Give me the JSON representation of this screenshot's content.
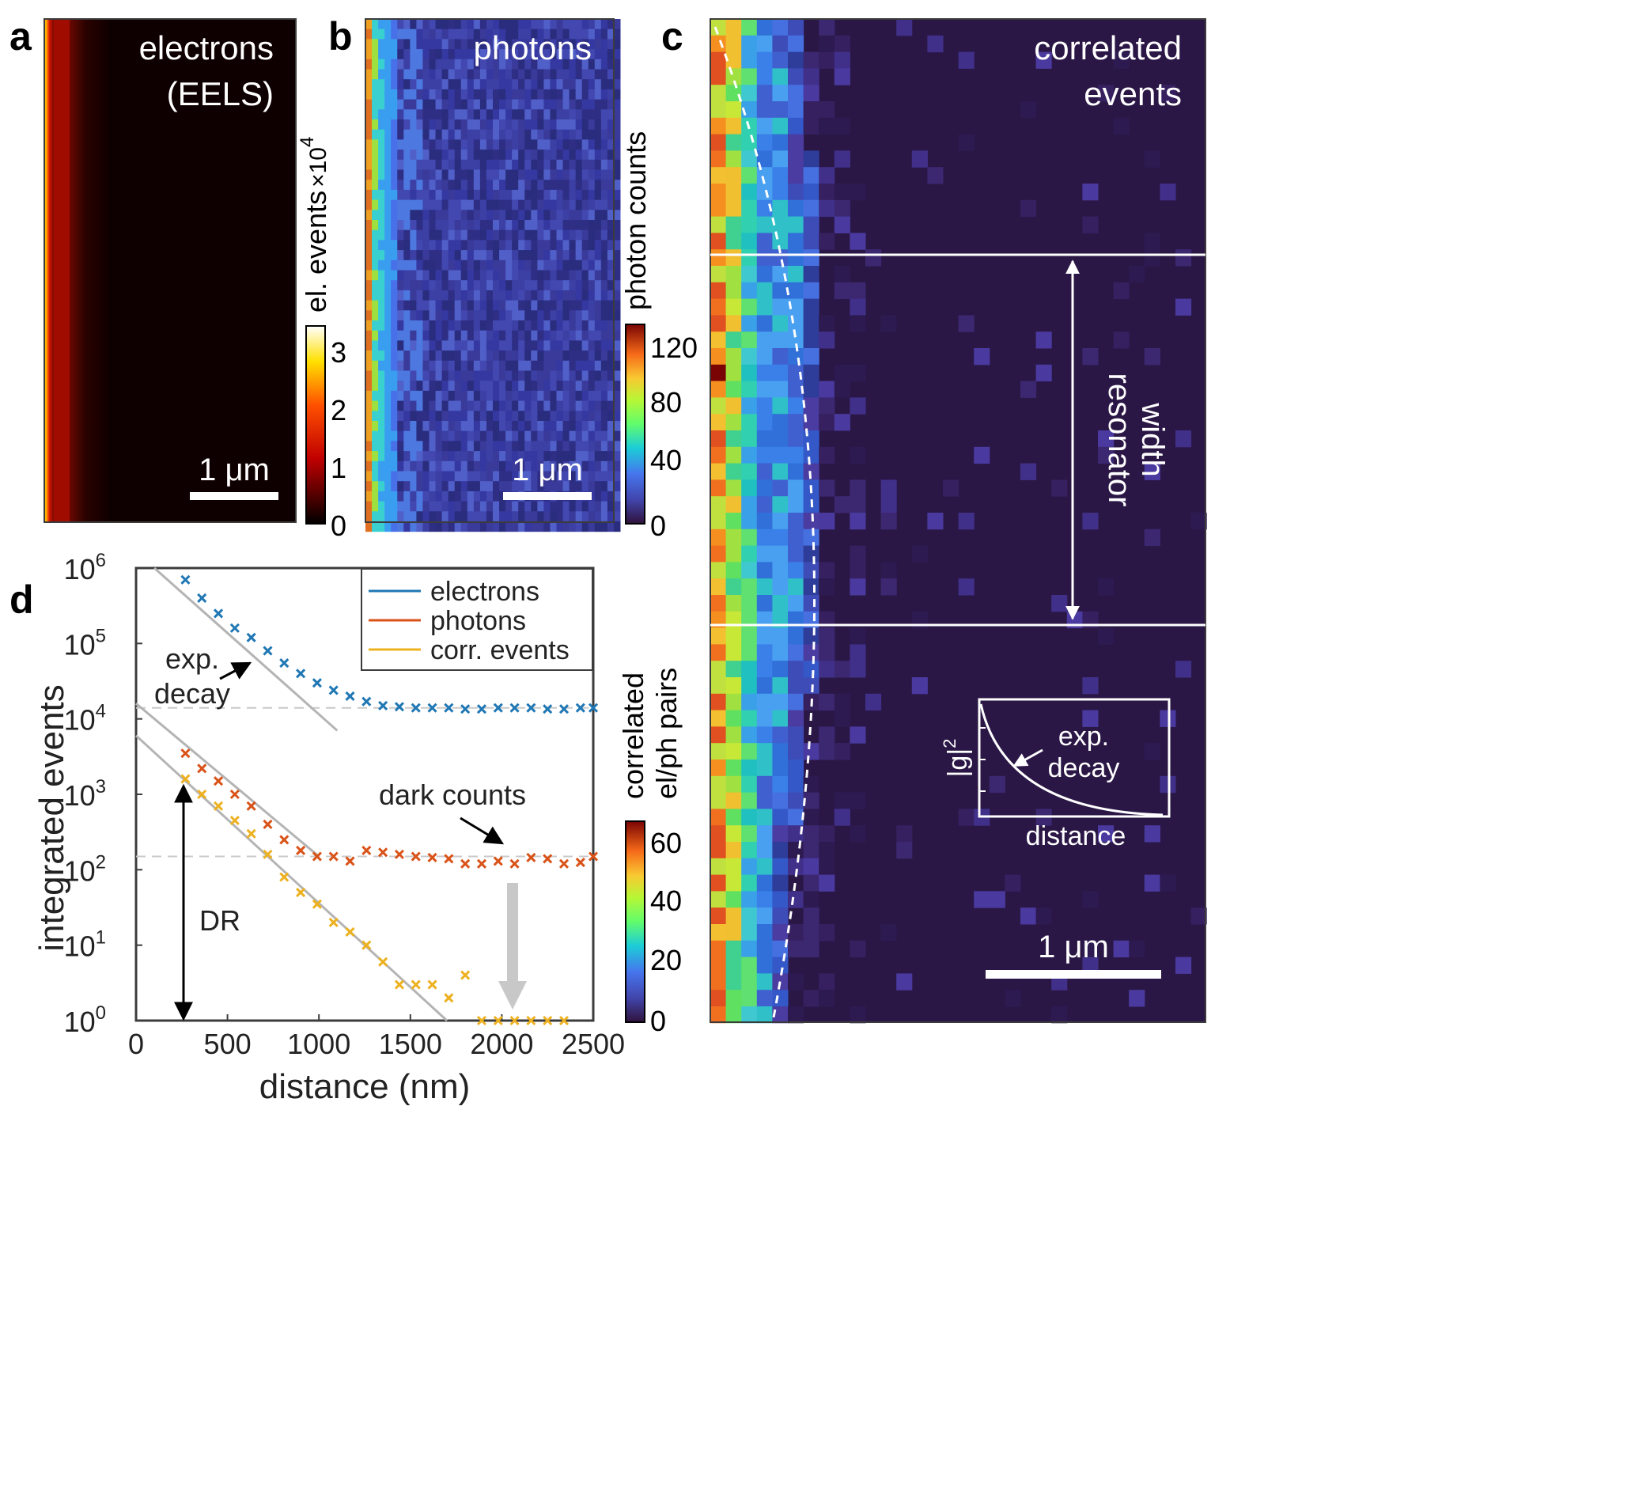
{
  "panels": {
    "a": {
      "letter": "a",
      "label_line1": "electrons",
      "label_line2": "(EELS)",
      "scale_bar": "1 μm",
      "colorbar": {
        "label": "el. events",
        "mult": "×10",
        "exp": "4",
        "ticks": [
          "0",
          "1",
          "2",
          "3"
        ]
      }
    },
    "b": {
      "letter": "b",
      "label": "photons",
      "scale_bar": "1 μm",
      "colorbar": {
        "label": "photon counts",
        "ticks": [
          "0",
          "40",
          "80",
          "120"
        ]
      }
    },
    "c": {
      "letter": "c",
      "label_line1": "correlated",
      "label_line2": "events",
      "annotation_line1": "resonator",
      "annotation_line2": "width",
      "scale_bar": "1 μm",
      "inset": {
        "ylabel_base": "|g|",
        "ylabel_exp": "2",
        "xlabel": "distance",
        "annot_line1": "exp.",
        "annot_line2": "decay"
      },
      "colorbar": {
        "label_line1": "correlated",
        "label_line2": "el/ph pairs",
        "ticks": [
          "0",
          "20",
          "40",
          "60"
        ]
      }
    },
    "d": {
      "letter": "d"
    }
  },
  "chart_data": {
    "type": "scatter",
    "title": "",
    "xlabel": "distance (nm)",
    "ylabel": "integrated events",
    "xscale": "linear",
    "yscale": "log",
    "xlim": [
      0,
      2500
    ],
    "ylim": [
      1,
      1000000
    ],
    "xticks": [
      "0",
      "500",
      "1000",
      "1500",
      "2000",
      "2500"
    ],
    "yticks": [
      {
        "base": "10",
        "exp": "0"
      },
      {
        "base": "10",
        "exp": "1"
      },
      {
        "base": "10",
        "exp": "2"
      },
      {
        "base": "10",
        "exp": "3"
      },
      {
        "base": "10",
        "exp": "4"
      },
      {
        "base": "10",
        "exp": "5"
      },
      {
        "base": "10",
        "exp": "6"
      }
    ],
    "legend_position": "top-right",
    "x": [
      270,
      360,
      450,
      540,
      630,
      720,
      810,
      900,
      990,
      1080,
      1170,
      1260,
      1350,
      1440,
      1530,
      1620,
      1710,
      1800,
      1890,
      1980,
      2070,
      2160,
      2250,
      2340,
      2430,
      2500
    ],
    "series": [
      {
        "name": "electrons",
        "color": "#1f77b4",
        "values": [
          700000,
          400000,
          250000,
          160000,
          120000,
          80000,
          55000,
          40000,
          30000,
          24000,
          20000,
          17000,
          15000,
          14500,
          14000,
          14000,
          14000,
          13500,
          13500,
          14000,
          14000,
          14000,
          13500,
          13500,
          14000,
          14000
        ]
      },
      {
        "name": "photons",
        "color": "#d95319",
        "values": [
          3500,
          2200,
          1500,
          1000,
          700,
          400,
          250,
          180,
          150,
          150,
          130,
          180,
          170,
          160,
          150,
          145,
          140,
          120,
          120,
          130,
          120,
          145,
          140,
          120,
          125,
          150
        ]
      },
      {
        "name": "corr. events",
        "color": "#edb120",
        "values": [
          1600,
          1000,
          700,
          450,
          300,
          160,
          80,
          50,
          35,
          20,
          15,
          10,
          6,
          3,
          3,
          3,
          2,
          4,
          1,
          1,
          1,
          1,
          1,
          1,
          null,
          null
        ]
      }
    ],
    "fit_lines": [
      {
        "x": [
          100,
          1100
        ],
        "y": [
          1000000,
          7000
        ]
      },
      {
        "x": [
          0,
          1000
        ],
        "y": [
          16000,
          150
        ]
      },
      {
        "x": [
          0,
          1700
        ],
        "y": [
          6000,
          1
        ]
      }
    ],
    "baselines": [
      14000,
      150
    ],
    "annotations": {
      "exp_decay_line1": "exp.",
      "exp_decay_line2": "decay",
      "dark_counts": "dark counts",
      "dr": "DR"
    }
  }
}
